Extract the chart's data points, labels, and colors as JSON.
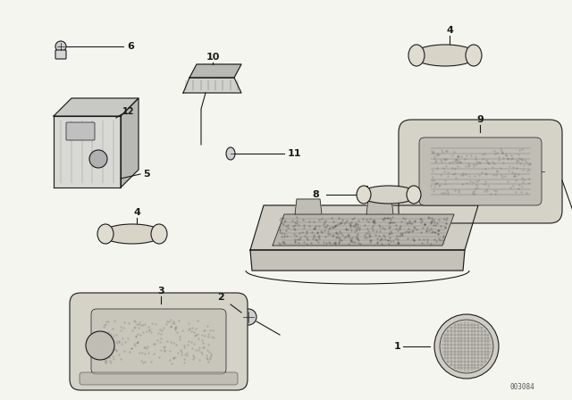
{
  "bg_color": "#f5f5f0",
  "line_color": "#1a1a1a",
  "fig_width": 6.4,
  "fig_height": 4.48,
  "dpi": 100,
  "watermark": "003084",
  "label_fs": 8,
  "lw": 0.8
}
